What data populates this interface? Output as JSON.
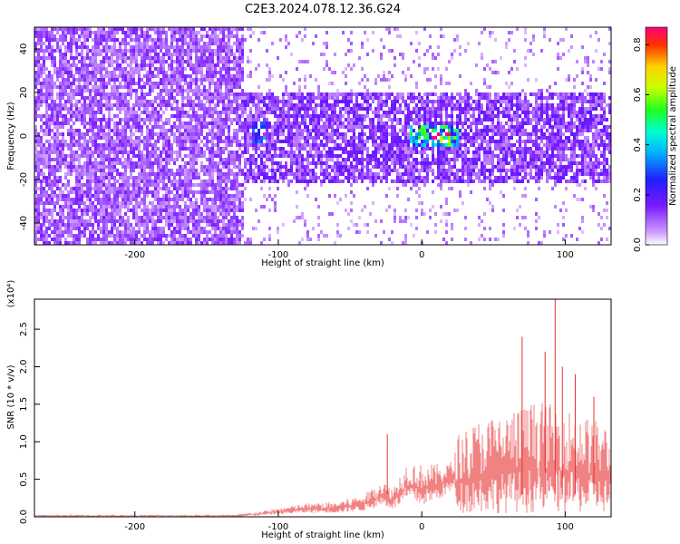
{
  "title": "C2E3.2024.078.12.36.G24",
  "chart_data": [
    {
      "type": "heatmap",
      "xlabel": "Height of straight line (km)",
      "ylabel": "Frequency (Hz)",
      "xlim": [
        -270,
        132
      ],
      "ylim": [
        -50,
        50
      ],
      "x_ticks": [
        -200,
        -100,
        0,
        100
      ],
      "x_tick_labels": [
        "-200",
        "-100",
        "0",
        "100"
      ],
      "y_ticks": [
        -40,
        -20,
        0,
        20,
        40
      ],
      "y_tick_labels": [
        "-40",
        "-20",
        "0",
        "20",
        "40"
      ],
      "colorbar": {
        "label": "Normalized spectral amplitude",
        "range": [
          0.0,
          0.87
        ],
        "ticks": [
          0.0,
          0.2,
          0.4,
          0.6,
          0.8
        ],
        "tick_labels": [
          "0.0",
          "0.2",
          "0.4",
          "0.6",
          "0.8"
        ]
      },
      "regions": [
        {
          "x_range": [
            -270,
            -125
          ],
          "f_range": [
            -50,
            50
          ],
          "level": 0.12,
          "description_level": "broadband noise"
        },
        {
          "x_range": [
            -125,
            132
          ],
          "f_range": [
            -20,
            20
          ],
          "level": 0.15
        },
        {
          "x_range": [
            -120,
            -110
          ],
          "f_range": [
            -2,
            8
          ],
          "level": 0.3
        },
        {
          "x_range": [
            -10,
            25
          ],
          "f_range": [
            -5,
            5
          ],
          "level": 0.45
        },
        {
          "x_range": [
            5,
            20
          ],
          "f_range": [
            -2,
            3
          ],
          "level": 0.8
        }
      ]
    },
    {
      "type": "line",
      "xlabel": "Height of straight line (km)",
      "ylabel": "SNR (10 * v/v)",
      "y_multiplier": "(x10⁴)",
      "xlim": [
        -270,
        132
      ],
      "ylim": [
        0,
        2.9
      ],
      "x_ticks": [
        -200,
        -100,
        0,
        100
      ],
      "x_tick_labels": [
        "-200",
        "-100",
        "0",
        "100"
      ],
      "y_ticks": [
        0.0,
        0.5,
        1.0,
        1.5,
        2.0,
        2.5
      ],
      "y_tick_labels": [
        "0.0",
        "0.5",
        "1.0",
        "1.5",
        "2.0",
        "2.5"
      ],
      "color": "#e83030",
      "envelope": [
        {
          "x": -270,
          "lo": 0.0,
          "hi": 0.03
        },
        {
          "x": -130,
          "lo": 0.0,
          "hi": 0.03
        },
        {
          "x": -110,
          "lo": 0.02,
          "hi": 0.08
        },
        {
          "x": -100,
          "lo": 0.03,
          "hi": 0.12
        },
        {
          "x": -80,
          "lo": 0.05,
          "hi": 0.18
        },
        {
          "x": -60,
          "lo": 0.05,
          "hi": 0.2
        },
        {
          "x": -40,
          "lo": 0.08,
          "hi": 0.3
        },
        {
          "x": -28,
          "lo": 0.15,
          "hi": 0.5
        },
        {
          "x": -20,
          "lo": 0.1,
          "hi": 0.4
        },
        {
          "x": -10,
          "lo": 0.2,
          "hi": 0.75
        },
        {
          "x": 0,
          "lo": 0.15,
          "hi": 0.7
        },
        {
          "x": 10,
          "lo": 0.2,
          "hi": 0.7
        },
        {
          "x": 22,
          "lo": 0.35,
          "hi": 0.75
        },
        {
          "x": 25,
          "lo": 0.05,
          "hi": 1.1
        },
        {
          "x": 40,
          "lo": 0.05,
          "hi": 1.3
        },
        {
          "x": 60,
          "lo": 0.05,
          "hi": 1.4
        },
        {
          "x": 80,
          "lo": 0.05,
          "hi": 1.55
        },
        {
          "x": 100,
          "lo": 0.05,
          "hi": 1.45
        },
        {
          "x": 120,
          "lo": 0.05,
          "hi": 1.3
        },
        {
          "x": 132,
          "lo": 0.05,
          "hi": 1.2
        }
      ],
      "spikes": [
        {
          "x": -24,
          "y": 1.1
        },
        {
          "x": 70,
          "y": 2.4
        },
        {
          "x": 86,
          "y": 2.2
        },
        {
          "x": 93,
          "y": 2.95
        },
        {
          "x": 98,
          "y": 2.0
        },
        {
          "x": 107,
          "y": 1.9
        },
        {
          "x": 120,
          "y": 1.6
        }
      ]
    }
  ],
  "colors": {
    "heat_low": "#cc99ff",
    "heat_mid": "#6600ff",
    "heat_high": "#ff0000",
    "snr_line": "#e83030"
  }
}
